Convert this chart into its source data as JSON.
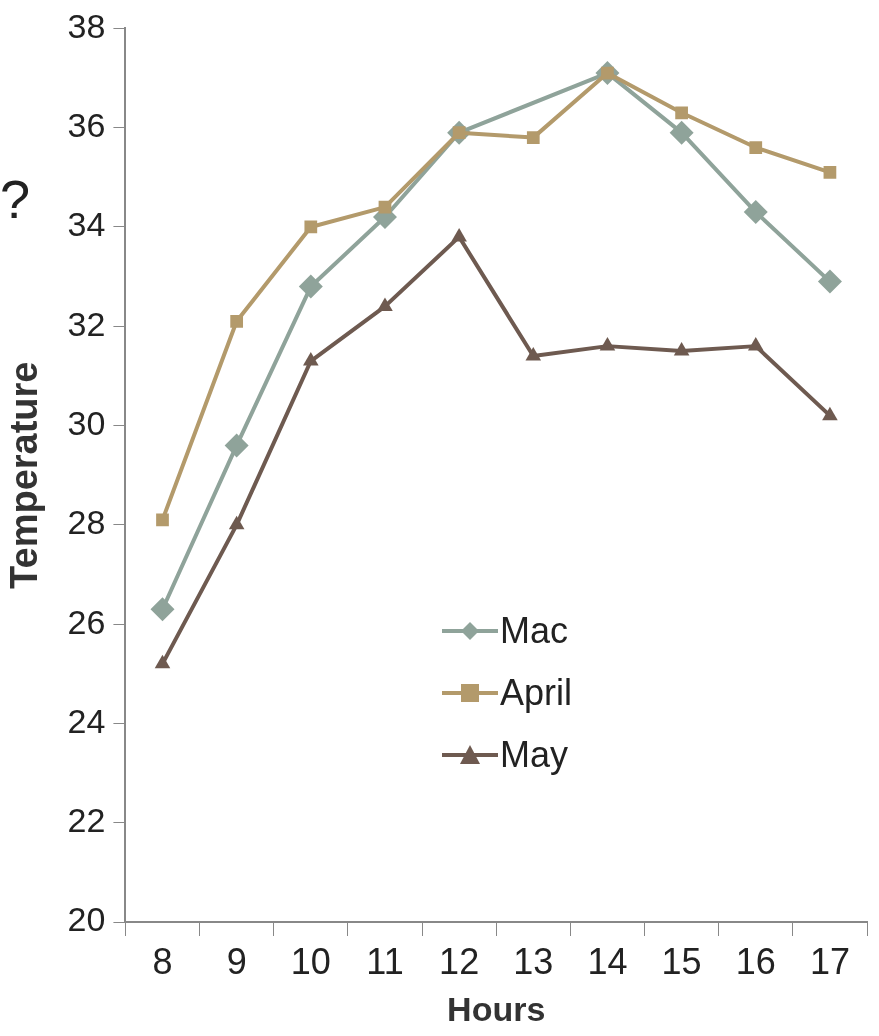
{
  "chart_data": {
    "type": "line",
    "xlabel": "Hours",
    "ylabel": "Temperature",
    "annotations": [
      "?"
    ],
    "categories": [
      "8",
      "9",
      "10",
      "11",
      "12",
      "13",
      "14",
      "15",
      "16",
      "17"
    ],
    "series": [
      {
        "name": "Mac",
        "color": "#8fa39a",
        "marker": "diamond",
        "values": [
          26.3,
          29.6,
          32.8,
          34.2,
          35.9,
          null,
          37.1,
          35.9,
          34.3,
          32.9
        ]
      },
      {
        "name": "April",
        "color": "#b39a6b",
        "marker": "square",
        "values": [
          28.1,
          32.1,
          34.0,
          34.4,
          35.9,
          35.8,
          37.1,
          36.3,
          35.6,
          35.1
        ]
      },
      {
        "name": "May",
        "color": "#6e5a50",
        "marker": "triangle",
        "values": [
          25.2,
          28.0,
          31.3,
          32.4,
          33.8,
          31.4,
          31.6,
          31.5,
          31.6,
          30.2
        ]
      }
    ],
    "ylim": [
      20,
      38
    ],
    "yticks": [
      20,
      22,
      24,
      26,
      28,
      30,
      32,
      34,
      36,
      38
    ],
    "grid": false,
    "legend": "bottom center"
  }
}
